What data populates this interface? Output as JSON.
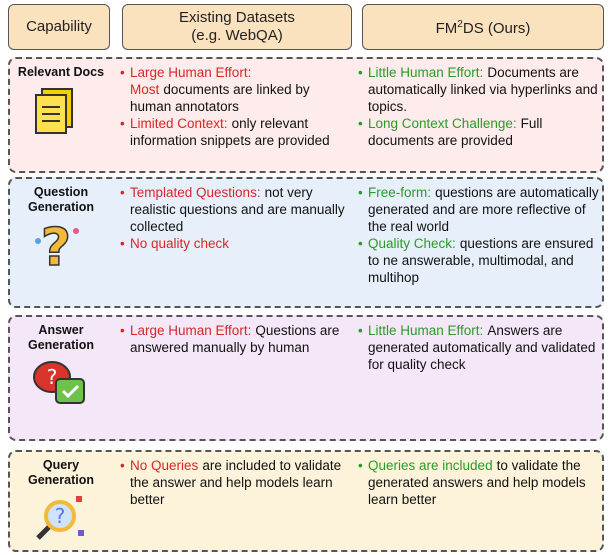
{
  "header": {
    "capability": "Capability",
    "existing": [
      "Existing Datasets",
      "(e.g. WebQA)"
    ],
    "ours": [
      "FM",
      "2",
      "DS (Ours)"
    ]
  },
  "rows": [
    {
      "capability": "Relevant Docs",
      "existing": [
        {
          "highlight": "Large Human Effort: Most",
          "text": "documents are linked by human annotators"
        },
        {
          "highlight": "Limited Context:",
          "text": "only relevant information snippets are provided"
        }
      ],
      "ours": [
        {
          "highlight": "Little Human Effort:",
          "text": "Documents are automatically linked via  hyperlinks and topics."
        },
        {
          "highlight": "Long Context Challenge:",
          "text": "Full documents are provided"
        }
      ]
    },
    {
      "capability": "Question Generation",
      "existing": [
        {
          "highlight": "Templated Questions:",
          "text": "not very realistic questions and are manually collected"
        },
        {
          "highlight": "No quality check",
          "text": ""
        }
      ],
      "ours": [
        {
          "highlight": "Free-form:",
          "text": "questions are automatically generated and are more reflective of the real world"
        },
        {
          "highlight": "Quality Check:",
          "text": "questions are ensured to ne answerable, multimodal, and multihop"
        }
      ]
    },
    {
      "capability": "Answer Generation",
      "existing": [
        {
          "highlight": "Large Human Effort:",
          "text": "Questions are answered manually by human"
        }
      ],
      "ours": [
        {
          "highlight": "Little Human Effort:",
          "text": "Answers are generated automatically and validated for quality check"
        }
      ]
    },
    {
      "capability": "Query Generation",
      "existing": [
        {
          "highlight": "No Queries",
          "text": "are included to validate the answer and help models learn better"
        }
      ],
      "ours": [
        {
          "highlight": "Queries are included",
          "text": "to validate the generated answers and help models learn better"
        }
      ]
    }
  ]
}
